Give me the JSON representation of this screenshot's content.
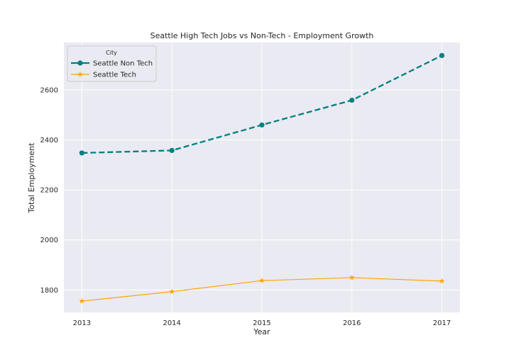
{
  "chart_data": {
    "type": "line",
    "title": "Seattle High Tech Jobs vs Non-Tech - Employment Growth",
    "xlabel": "Year",
    "ylabel": "Total Employment",
    "x": [
      2013,
      2014,
      2015,
      2016,
      2017
    ],
    "ylim": [
      1710,
      2790
    ],
    "yticks": [
      1800,
      2000,
      2200,
      2400,
      2600
    ],
    "grid": true,
    "legend": {
      "title": "City",
      "position": "top-left"
    },
    "series": [
      {
        "name": "Seattle Non Tech",
        "values": [
          2348,
          2358,
          2460,
          2559,
          2738
        ],
        "color": "#008080",
        "linestyle": "dashed",
        "marker": "circle"
      },
      {
        "name": "Seattle Tech",
        "values": [
          1755,
          1793,
          1837,
          1849,
          1835
        ],
        "color": "#ffa500",
        "linestyle": "solid",
        "marker": "star"
      }
    ]
  },
  "colors": {
    "plot_background": "#eaeaf2",
    "grid": "#ffffff"
  }
}
